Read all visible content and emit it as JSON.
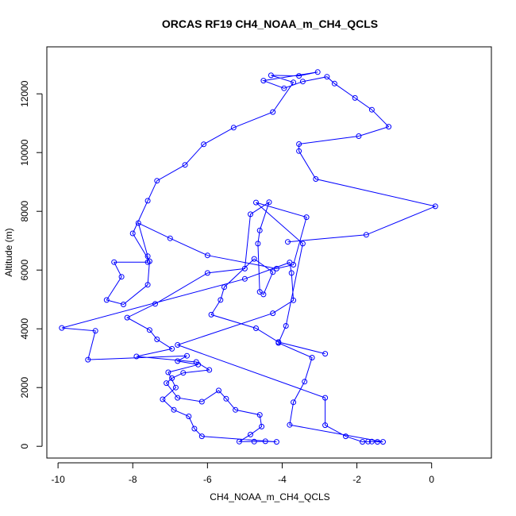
{
  "chart_data": {
    "type": "line",
    "title": "ORCAS RF19 CH4_NOAA_m_CH4_QCLS",
    "xlabel": "CH4_NOAA_m_CH4_QCLS",
    "ylabel": "Altitude (m)",
    "xlim": [
      -10.3,
      1.6
    ],
    "ylim": [
      -400,
      13600
    ],
    "x_ticks": [
      -10,
      -8,
      -6,
      -4,
      -2,
      0
    ],
    "y_ticks": [
      0,
      2000,
      4000,
      6000,
      8000,
      10000,
      12000
    ],
    "x_tick_labels": [
      "-10",
      "-8",
      "-6",
      "-4",
      "-2",
      "0"
    ],
    "y_tick_labels": [
      "0",
      "2000",
      "4000",
      "6000",
      "8000",
      "10000",
      "12000"
    ],
    "grid": false,
    "legend": "none",
    "series": [
      {
        "color": "#0000ff",
        "marker": "open-circle",
        "points": [
          [
            -2.85,
            3150
          ],
          [
            -4.1,
            3550
          ],
          [
            -4.7,
            4020
          ],
          [
            -5.9,
            4480
          ],
          [
            -5.65,
            4980
          ],
          [
            -5.55,
            5420
          ],
          [
            -4.75,
            6380
          ],
          [
            -4.25,
            5930
          ],
          [
            -4.5,
            5170
          ],
          [
            -4.6,
            5260
          ],
          [
            -4.65,
            6900
          ],
          [
            -4.6,
            7350
          ],
          [
            -4.35,
            8310
          ],
          [
            -4.85,
            7900
          ],
          [
            -5.0,
            6050
          ],
          [
            -6.0,
            5900
          ],
          [
            -7.4,
            4850
          ],
          [
            -8.15,
            4380
          ],
          [
            -7.55,
            3960
          ],
          [
            -7.35,
            3640
          ],
          [
            -6.95,
            3320
          ],
          [
            -7.9,
            3060
          ],
          [
            -6.3,
            2870
          ],
          [
            -5.95,
            2600
          ],
          [
            -6.65,
            2500
          ],
          [
            -6.95,
            2320
          ],
          [
            -7.1,
            2150
          ],
          [
            -6.8,
            1650
          ],
          [
            -6.15,
            1520
          ],
          [
            -5.7,
            1900
          ],
          [
            -5.5,
            1620
          ],
          [
            -5.25,
            1240
          ],
          [
            -4.6,
            1070
          ],
          [
            -4.55,
            670
          ],
          [
            -4.85,
            400
          ],
          [
            -5.15,
            160
          ],
          [
            -4.75,
            160
          ],
          [
            -4.45,
            170
          ],
          [
            -4.15,
            150
          ],
          [
            -6.15,
            340
          ],
          [
            -6.35,
            600
          ],
          [
            -6.5,
            1020
          ],
          [
            -6.9,
            1240
          ],
          [
            -7.2,
            1600
          ],
          [
            -6.85,
            2000
          ],
          [
            -7.05,
            2520
          ],
          [
            -6.25,
            2780
          ],
          [
            -6.8,
            2900
          ],
          [
            -6.55,
            3080
          ],
          [
            -9.2,
            2950
          ],
          [
            -9.0,
            3930
          ],
          [
            -9.9,
            4030
          ],
          [
            -5.0,
            5700
          ],
          [
            -3.8,
            6260
          ],
          [
            -3.75,
            5900
          ],
          [
            -3.7,
            4970
          ],
          [
            -4.25,
            4530
          ],
          [
            -6.8,
            3450
          ],
          [
            -2.85,
            1650
          ],
          [
            -2.85,
            720
          ],
          [
            -2.3,
            340
          ],
          [
            -1.85,
            150
          ],
          [
            -1.7,
            160
          ],
          [
            -1.6,
            160
          ],
          [
            -1.45,
            150
          ],
          [
            -1.3,
            150
          ],
          [
            -3.8,
            730
          ],
          [
            -3.7,
            1500
          ],
          [
            -3.4,
            2200
          ],
          [
            -3.2,
            3020
          ],
          [
            -4.1,
            3520
          ],
          [
            -3.9,
            4100
          ],
          [
            -3.45,
            6900
          ],
          [
            -4.7,
            8300
          ],
          [
            -3.35,
            7800
          ],
          [
            -3.7,
            6180
          ],
          [
            -4.15,
            6050
          ],
          [
            -6.0,
            6500
          ],
          [
            -7.0,
            7080
          ],
          [
            -7.85,
            7600
          ],
          [
            -7.6,
            6470
          ],
          [
            -7.6,
            6270
          ],
          [
            -8.5,
            6270
          ],
          [
            -8.3,
            5770
          ],
          [
            -8.7,
            4980
          ],
          [
            -8.25,
            4830
          ],
          [
            -7.6,
            5500
          ],
          [
            -7.55,
            6300
          ],
          [
            -8.0,
            7250
          ],
          [
            -7.6,
            8360
          ],
          [
            -7.35,
            9040
          ],
          [
            -6.6,
            9580
          ],
          [
            -6.1,
            10280
          ],
          [
            -5.3,
            10850
          ],
          [
            -4.25,
            11380
          ],
          [
            -3.7,
            12390
          ],
          [
            -4.3,
            12630
          ],
          [
            -3.55,
            12610
          ],
          [
            -3.05,
            12740
          ],
          [
            -4.5,
            12450
          ],
          [
            -3.95,
            12190
          ],
          [
            -3.45,
            12420
          ],
          [
            -2.8,
            12580
          ],
          [
            -2.6,
            12350
          ],
          [
            -2.05,
            11860
          ],
          [
            -1.6,
            11460
          ],
          [
            -1.15,
            10880
          ],
          [
            -1.95,
            10560
          ],
          [
            -3.55,
            10290
          ],
          [
            -3.55,
            10050
          ],
          [
            -3.1,
            9100
          ],
          [
            0.1,
            8170
          ],
          [
            -1.75,
            7200
          ],
          [
            -3.85,
            6960
          ]
        ]
      }
    ]
  }
}
